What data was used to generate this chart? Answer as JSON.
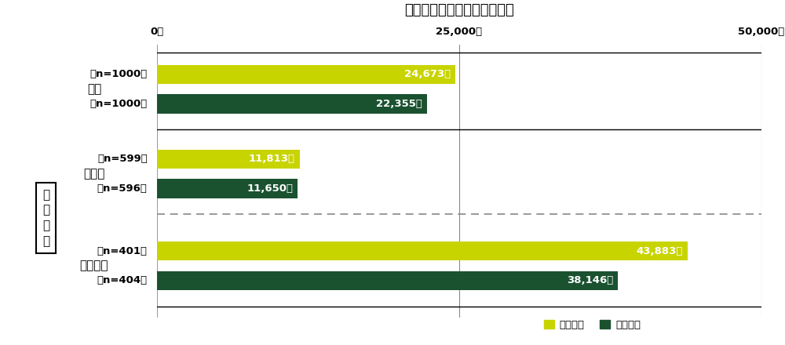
{
  "title": "ひと月あたりの収入額の平均",
  "xlim": [
    0,
    50000
  ],
  "xticks": [
    0,
    25000,
    50000
  ],
  "xtick_labels": [
    "0円",
    "25,000円",
    "50,000円"
  ],
  "color_prev": "#c8d400",
  "color_curr": "#1a5230",
  "groups": [
    {
      "group_label": "全体",
      "rows": [
        {
          "label": "『n=1000』",
          "value": 24673,
          "bar_label": "24,673円",
          "type": "prev"
        },
        {
          "label": "『n=1000』",
          "value": 22355,
          "bar_label": "22,355円",
          "type": "curr"
        }
      ]
    },
    {
      "group_label": "高校生",
      "rows": [
        {
          "label": "『n=599』",
          "value": 11813,
          "bar_label": "11,813円",
          "type": "prev"
        },
        {
          "label": "『n=596』",
          "value": 11650,
          "bar_label": "11,650円",
          "type": "curr"
        }
      ]
    },
    {
      "group_label": "大学生等",
      "rows": [
        {
          "label": "『n=401』",
          "value": 43883,
          "bar_label": "43,883円",
          "type": "prev"
        },
        {
          "label": "『n=404』",
          "value": 38146,
          "bar_label": "38,146円",
          "type": "curr"
        }
      ]
    }
  ],
  "section_label": "学\n生\n区\n分",
  "legend_prev": "前回調査",
  "legend_curr": "今回調査",
  "bar_height": 0.52,
  "font_size_title": 13,
  "font_size_labels": 9.5,
  "font_size_bar_text": 9.5,
  "font_size_xtick": 9.5,
  "font_size_legend": 9.5,
  "font_size_group": 11,
  "font_size_section": 11
}
